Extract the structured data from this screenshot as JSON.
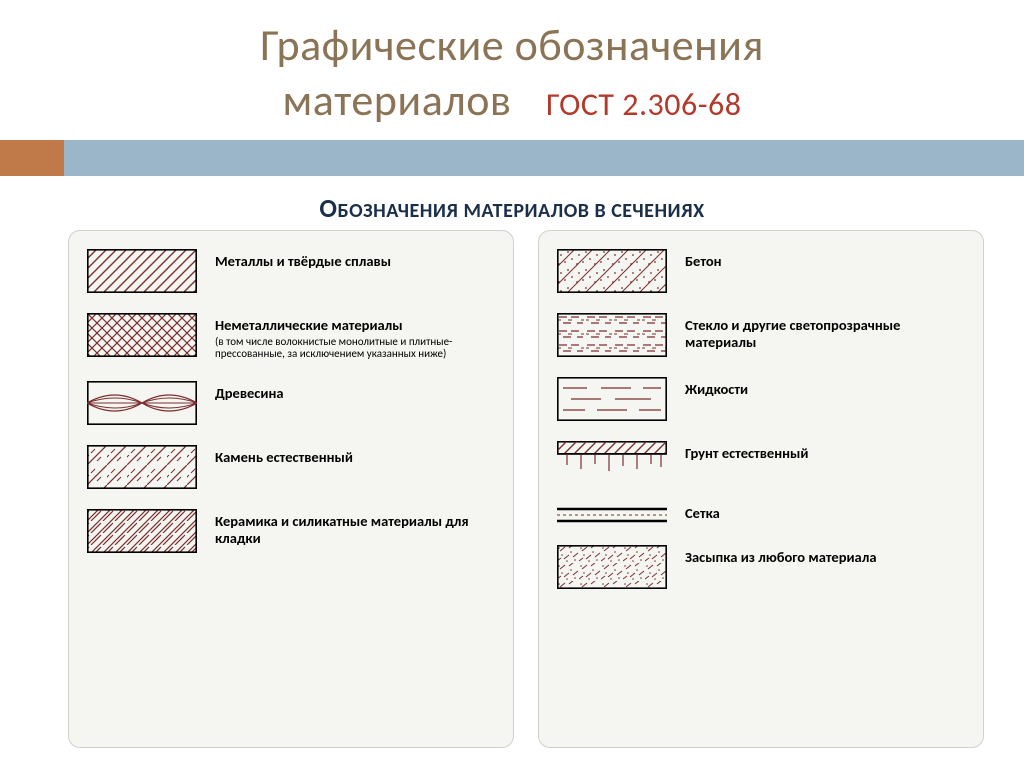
{
  "title_line1": "Графические обозначения",
  "title_line2": "материалов",
  "gost": "ГОСТ 2.306-68",
  "section_first_char": "О",
  "section_rest": "БОЗНАЧЕНИЯ МАТЕРИАЛОВ В СЕЧЕНИЯХ",
  "colors": {
    "title": "#8b7355",
    "gost": "#b33a2b",
    "band": "#9bb5c9",
    "band_tab": "#c07a4a",
    "section_text": "#1a2f4a",
    "card_bg": "#f5f5f2",
    "card_border": "#d0d0cc",
    "hatch_stroke": "#7a2e2e",
    "hatch_border": "#000000"
  },
  "left": [
    {
      "pattern": "hatch45",
      "label": "Металлы и твёрдые сплавы"
    },
    {
      "pattern": "crosshatch",
      "label": "Неметаллические материалы",
      "sub": "(в том числе волокнистые монолитные и плитные-прессованные, за исключением указанных ниже)"
    },
    {
      "pattern": "wood",
      "label": "Древесина"
    },
    {
      "pattern": "stone",
      "label": "Камень естественный"
    },
    {
      "pattern": "ceramic",
      "label": "Керамика и силикатные материалы для кладки"
    }
  ],
  "right": [
    {
      "pattern": "concrete",
      "label": "Бетон"
    },
    {
      "pattern": "glass",
      "label": "Стекло и другие светопрозрачные материалы"
    },
    {
      "pattern": "liquid",
      "label": "Жидкости"
    },
    {
      "pattern": "soil",
      "label": "Грунт естественный"
    },
    {
      "pattern": "mesh",
      "label": "Сетка",
      "small": true
    },
    {
      "pattern": "backfill",
      "label": "Засыпка из любого материала"
    }
  ]
}
